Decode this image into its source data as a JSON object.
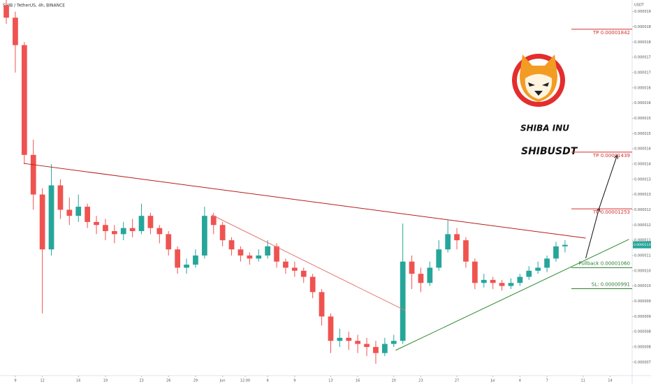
{
  "chart_data": {
    "type": "candlestick",
    "title": "SHIB / TetherUS, 4h, BINANCE",
    "currency": "USDT",
    "annotations": [
      "SHIBA INU",
      "SHIBUSDT"
    ],
    "up_color": "#26a69a",
    "down_color": "#ef5350",
    "xlim": [
      -1.7,
      68.45
    ],
    "ylim": [
      7.06e-06,
      1.938e-05
    ],
    "xticks": [
      {
        "value": 0,
        "label": "9"
      },
      {
        "value": 3,
        "label": "12"
      },
      {
        "value": 7,
        "label": "16"
      },
      {
        "value": 10,
        "label": "19"
      },
      {
        "value": 14,
        "label": "23"
      },
      {
        "value": 17,
        "label": "26"
      },
      {
        "value": 20,
        "label": "29"
      },
      {
        "value": 23,
        "label": "Jun"
      },
      {
        "value": 25.5,
        "label": "12:00"
      },
      {
        "value": 28,
        "label": "6"
      },
      {
        "value": 31,
        "label": "9"
      },
      {
        "value": 35,
        "label": "13"
      },
      {
        "value": 38,
        "label": "16"
      },
      {
        "value": 42,
        "label": "20"
      },
      {
        "value": 45,
        "label": "23"
      },
      {
        "value": 49,
        "label": "27"
      },
      {
        "value": 53,
        "label": "Jul"
      },
      {
        "value": 56,
        "label": "4"
      },
      {
        "value": 59,
        "label": "7"
      },
      {
        "value": 63,
        "label": "11"
      },
      {
        "value": 66,
        "label": "14"
      }
    ],
    "yticks": [
      {
        "value": 7.5e-06,
        "label": "0.00000750"
      },
      {
        "value": 8e-06,
        "label": "0.00000800"
      },
      {
        "value": 8.5e-06,
        "label": "0.00000850"
      },
      {
        "value": 9e-06,
        "label": "0.00000900"
      },
      {
        "value": 9.5e-06,
        "label": "0.00000950"
      },
      {
        "value": 1e-05,
        "label": "0.00001000"
      },
      {
        "value": 1.05e-05,
        "label": "0.00001050"
      },
      {
        "value": 1.1e-05,
        "label": "0.00001100"
      },
      {
        "value": 1.15e-05,
        "label": "0.00001150"
      },
      {
        "value": 1.2e-05,
        "label": "0.00001200"
      },
      {
        "value": 1.25e-05,
        "label": "0.00001250"
      },
      {
        "value": 1.3e-05,
        "label": "0.00001300"
      },
      {
        "value": 1.35e-05,
        "label": "0.00001350"
      },
      {
        "value": 1.4e-05,
        "label": "0.00001400"
      },
      {
        "value": 1.45e-05,
        "label": "0.00001450"
      },
      {
        "value": 1.5e-05,
        "label": "0.00001500"
      },
      {
        "value": 1.55e-05,
        "label": "0.00001550"
      },
      {
        "value": 1.6e-05,
        "label": "0.00001600"
      },
      {
        "value": 1.65e-05,
        "label": "0.00001650"
      },
      {
        "value": 1.7e-05,
        "label": "0.00001700"
      },
      {
        "value": 1.75e-05,
        "label": "0.00001750"
      },
      {
        "value": 1.8e-05,
        "label": "0.00001800"
      },
      {
        "value": 1.85e-05,
        "label": "0.00001850"
      },
      {
        "value": 1.9e-05,
        "label": "0.00001900"
      }
    ],
    "x": [
      -1,
      0,
      1,
      2,
      3,
      4,
      5,
      6,
      7,
      8,
      9,
      10,
      11,
      12,
      13,
      14,
      15,
      16,
      17,
      18,
      19,
      20,
      21,
      22,
      23,
      24,
      25,
      26,
      27,
      28,
      29,
      30,
      31,
      32,
      33,
      34,
      35,
      36,
      37,
      38,
      39,
      40,
      41,
      42,
      43,
      44,
      45,
      46,
      47,
      48,
      49,
      50,
      51,
      52,
      53,
      54,
      55,
      56,
      57,
      58,
      59,
      60,
      61
    ],
    "open": [
      1.92e-05,
      1.88e-05,
      1.79e-05,
      1.43e-05,
      1.3e-05,
      1.12e-05,
      1.33e-05,
      1.25e-05,
      1.23e-05,
      1.26e-05,
      1.21e-05,
      1.2e-05,
      1.18e-05,
      1.17e-05,
      1.19e-05,
      1.18e-05,
      1.23e-05,
      1.19e-05,
      1.17e-05,
      1.12e-05,
      1.06e-05,
      1.07e-05,
      1.1e-05,
      1.23e-05,
      1.2e-05,
      1.15e-05,
      1.12e-05,
      1.1e-05,
      1.09e-05,
      1.1e-05,
      1.13e-05,
      1.08e-05,
      1.06e-05,
      1.05e-05,
      1.03e-05,
      9.8e-06,
      9e-06,
      8.2e-06,
      8.3e-06,
      8.2e-06,
      8.1e-06,
      8e-06,
      7.8e-06,
      8.1e-06,
      8.2e-06,
      1.08e-05,
      1.04e-05,
      1.01e-05,
      1.06e-05,
      1.12e-05,
      1.17e-05,
      1.15e-05,
      1.08e-05,
      1.01e-05,
      1.02e-05,
      1.01e-05,
      1e-05,
      1.01e-05,
      1.03e-05,
      1.05e-05,
      1.06e-05,
      1.09e-05,
      1.13e-05
    ],
    "high": [
      1.94e-05,
      1.9e-05,
      1.8e-05,
      1.48e-05,
      1.32e-05,
      1.4e-05,
      1.35e-05,
      1.29e-05,
      1.3e-05,
      1.27e-05,
      1.23e-05,
      1.22e-05,
      1.2e-05,
      1.21e-05,
      1.22e-05,
      1.27e-05,
      1.24e-05,
      1.2e-05,
      1.18e-05,
      1.13e-05,
      1.09e-05,
      1.12e-05,
      1.26e-05,
      1.24e-05,
      1.21e-05,
      1.16e-05,
      1.13e-05,
      1.11e-05,
      1.12e-05,
      1.15e-05,
      1.14e-05,
      1.09e-05,
      1.08e-05,
      1.06e-05,
      1.04e-05,
      9.9e-06,
      9.1e-06,
      8.6e-06,
      8.5e-06,
      8.4e-06,
      8.3e-06,
      8.2e-06,
      8.3e-06,
      8.4e-06,
      1.205e-05,
      1.1e-05,
      1.06e-05,
      1.08e-05,
      1.15e-05,
      1.215e-05,
      1.19e-05,
      1.16e-05,
      1.09e-05,
      1.04e-05,
      1.03e-05,
      1.02e-05,
      1.025e-05,
      1.04e-05,
      1.065e-05,
      1.08e-05,
      1.1e-05,
      1.145e-05,
      1.15e-05
    ],
    "low": [
      1.86e-05,
      1.7e-05,
      1.4e-05,
      1.25e-05,
      9.1e-06,
      1.1e-05,
      1.22e-05,
      1.2e-05,
      1.21e-05,
      1.19e-05,
      1.17e-05,
      1.15e-05,
      1.14e-05,
      1.15e-05,
      1.16e-05,
      1.17e-05,
      1.17e-05,
      1.14e-05,
      1.1e-05,
      1.04e-05,
      1.04e-05,
      1.06e-05,
      1.09e-05,
      1.17e-05,
      1.13e-05,
      1.1e-05,
      1.08e-05,
      1.07e-05,
      1.08e-05,
      1.09e-05,
      1.06e-05,
      1.04e-05,
      1.03e-05,
      1.01e-05,
      9.6e-06,
      8.7e-06,
      7.8e-06,
      8e-06,
      7.9e-06,
      7.8e-06,
      7.7e-06,
      7.45e-06,
      7.7e-06,
      8e-06,
      8.1e-06,
      9.9e-06,
      9.8e-06,
      1e-05,
      1.05e-05,
      1.11e-05,
      1.12e-05,
      1.06e-05,
      9.9e-06,
      9.95e-06,
      9.9e-06,
      9.85e-06,
      9.9e-06,
      1e-05,
      1.02e-05,
      1.04e-05,
      1.045e-05,
      1.08e-05,
      1.11e-05
    ],
    "close": [
      1.88e-05,
      1.79e-05,
      1.43e-05,
      1.3e-05,
      1.12e-05,
      1.33e-05,
      1.25e-05,
      1.23e-05,
      1.26e-05,
      1.21e-05,
      1.2e-05,
      1.18e-05,
      1.17e-05,
      1.19e-05,
      1.18e-05,
      1.23e-05,
      1.19e-05,
      1.17e-05,
      1.12e-05,
      1.06e-05,
      1.07e-05,
      1.1e-05,
      1.23e-05,
      1.2e-05,
      1.15e-05,
      1.12e-05,
      1.1e-05,
      1.09e-05,
      1.1e-05,
      1.13e-05,
      1.08e-05,
      1.06e-05,
      1.05e-05,
      1.03e-05,
      9.8e-06,
      9e-06,
      8.2e-06,
      8.3e-06,
      8.2e-06,
      8.1e-06,
      8e-06,
      7.8e-06,
      8.1e-06,
      8.2e-06,
      1.08e-05,
      1.04e-05,
      1.01e-05,
      1.06e-05,
      1.12e-05,
      1.17e-05,
      1.15e-05,
      1.08e-05,
      1.01e-05,
      1.02e-05,
      1.01e-05,
      1e-05,
      1.01e-05,
      1.03e-05,
      1.05e-05,
      1.06e-05,
      1.09e-05,
      1.13e-05,
      1.135e-05
    ],
    "levels": [
      {
        "label": "TP 0.00001842",
        "value": 1.842e-05,
        "color": "#d32f2f"
      },
      {
        "label": "TP 0.00001439",
        "value": 1.439e-05,
        "color": "#d32f2f"
      },
      {
        "label": "TP 0.00001253",
        "value": 1.253e-05,
        "color": "#d32f2f"
      },
      {
        "label": "Pullback 0.00001060",
        "value": 1.06e-05,
        "color": "#2e7d32"
      },
      {
        "label": "SL:  0.00000991",
        "value": 9.91e-06,
        "color": "#2e7d32"
      }
    ],
    "lines": [
      {
        "color": "#b71c1c",
        "x": [
          0.93,
          63.3
        ],
        "y": [
          1.402e-05,
          1.157e-05
        ]
      },
      {
        "color": "#e57373",
        "x": [
          21.8,
          43.3
        ],
        "y": [
          1.233e-05,
          9.19e-06
        ]
      },
      {
        "color": "#2e8b2e",
        "x": [
          42.2,
          68.1
        ],
        "y": [
          7.89e-06,
          1.153e-05
        ]
      },
      {
        "color": "#111111",
        "x": [
          63.3,
          64.8,
          66.8
        ],
        "y": [
          1.091e-05,
          1.256e-05,
          1.43e-05
        ]
      }
    ]
  }
}
